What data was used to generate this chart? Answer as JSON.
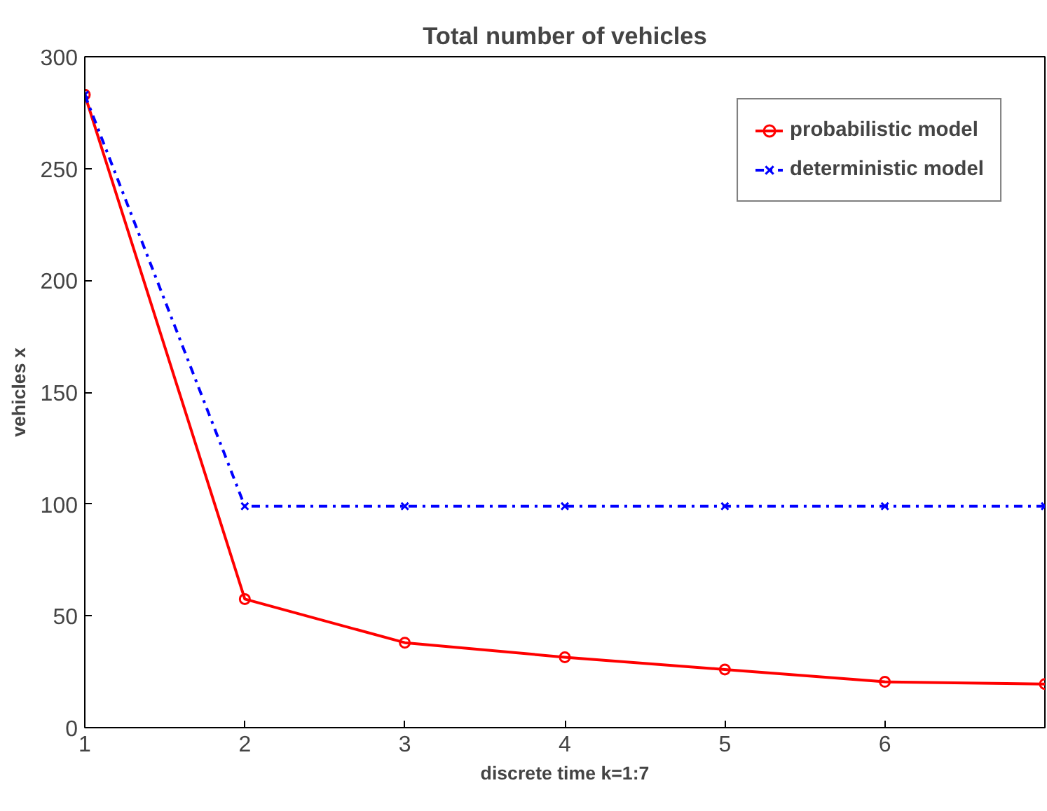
{
  "chart_data": {
    "type": "line",
    "title": "Total number of vehicles",
    "xlabel": "discrete time k=1:7",
    "ylabel": "vehicles x",
    "x": [
      1,
      2,
      3,
      4,
      5,
      6,
      7
    ],
    "series": [
      {
        "name": "probabilistic model",
        "color": "#ff0000",
        "values": [
          283,
          57.5,
          38,
          31.5,
          26,
          20.5,
          19.5
        ],
        "marker": "circle",
        "line_style": "solid"
      },
      {
        "name": "deterministic model",
        "color": "#0000ff",
        "values": [
          283,
          99,
          99,
          99,
          99,
          99,
          99
        ],
        "marker": "cross",
        "line_style": "dashdot"
      }
    ],
    "xlim": [
      1,
      7
    ],
    "xticks": [
      1,
      2,
      3,
      4,
      5,
      6
    ],
    "ylim": [
      0,
      300
    ],
    "yticks": [
      0,
      50,
      100,
      150,
      200,
      250,
      300
    ],
    "grid": false,
    "legend": "top right"
  }
}
